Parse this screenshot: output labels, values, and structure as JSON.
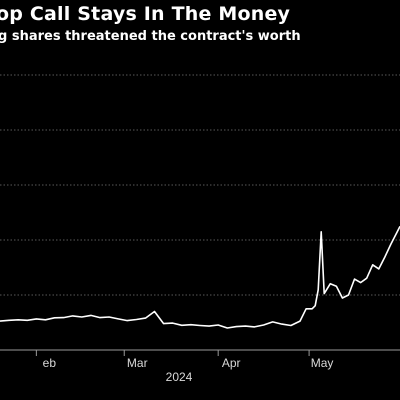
{
  "header": {
    "title": "op Call Stays In The Money",
    "subtitle": "g shares threatened the contract's worth"
  },
  "chart_data": {
    "type": "line",
    "xlabel": "2024",
    "ylabel": "",
    "x_ticks": [
      {
        "label": "eb",
        "date": "2024-02-01"
      },
      {
        "label": "Mar",
        "date": "2024-03-01"
      },
      {
        "label": "Apr",
        "date": "2024-04-01"
      },
      {
        "label": "May",
        "date": "2024-05-01"
      }
    ],
    "x_range": [
      "2024-01-20",
      "2024-05-31"
    ],
    "ylim": [
      0,
      100
    ],
    "grid": true,
    "series": [
      {
        "color": "#ffffff",
        "x": [
          "2024-01-20",
          "2024-01-23",
          "2024-01-26",
          "2024-01-29",
          "2024-02-01",
          "2024-02-04",
          "2024-02-07",
          "2024-02-10",
          "2024-02-13",
          "2024-02-16",
          "2024-02-19",
          "2024-02-22",
          "2024-02-25",
          "2024-02-28",
          "2024-03-02",
          "2024-03-05",
          "2024-03-08",
          "2024-03-11",
          "2024-03-14",
          "2024-03-17",
          "2024-03-20",
          "2024-03-23",
          "2024-03-26",
          "2024-03-29",
          "2024-04-01",
          "2024-04-04",
          "2024-04-07",
          "2024-04-10",
          "2024-04-13",
          "2024-04-16",
          "2024-04-19",
          "2024-04-22",
          "2024-04-25",
          "2024-04-28",
          "2024-04-30",
          "2024-05-01",
          "2024-05-02",
          "2024-05-03",
          "2024-05-04",
          "2024-05-05",
          "2024-05-06",
          "2024-05-08",
          "2024-05-10",
          "2024-05-12",
          "2024-05-14",
          "2024-05-16",
          "2024-05-18",
          "2024-05-20",
          "2024-05-22",
          "2024-05-24",
          "2024-05-26",
          "2024-05-28",
          "2024-05-30",
          "2024-05-31"
        ],
        "y": [
          10.5,
          10.8,
          11.0,
          10.8,
          11.3,
          11.0,
          11.7,
          11.8,
          12.4,
          12.0,
          12.6,
          11.8,
          12.0,
          11.3,
          10.7,
          11.1,
          11.6,
          14.0,
          9.6,
          9.8,
          9.0,
          9.2,
          8.9,
          8.7,
          9.1,
          8.0,
          8.5,
          8.7,
          8.4,
          9.1,
          10.2,
          9.4,
          8.9,
          10.5,
          15.0,
          15.0,
          15.0,
          16.1,
          21.9,
          43.0,
          20.5,
          24.1,
          23.2,
          18.9,
          20.0,
          25.8,
          24.5,
          26.1,
          31.0,
          29.5,
          33.8,
          38.5,
          42.8,
          45.0
        ]
      }
    ]
  }
}
